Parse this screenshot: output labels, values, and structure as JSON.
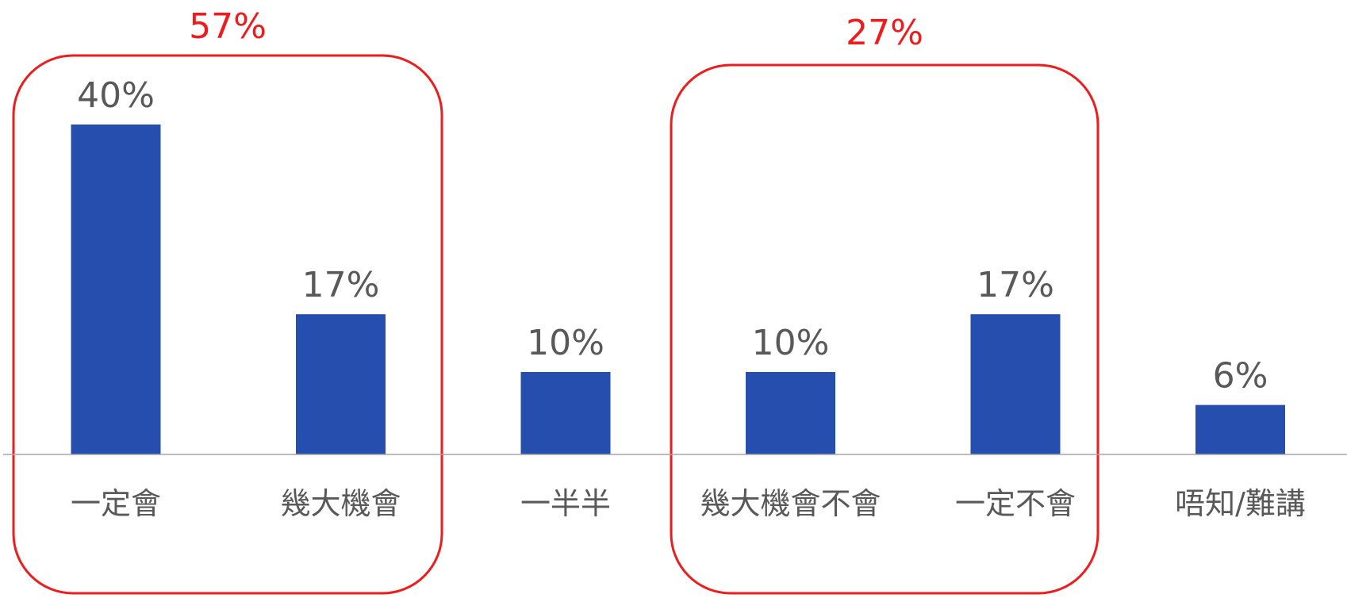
{
  "chart_data": {
    "type": "bar",
    "title": "",
    "xlabel": "",
    "ylabel": "",
    "ylim": [
      0,
      40
    ],
    "grid": false,
    "legend": "none",
    "categories": [
      "一定會",
      "幾大機會",
      "一半半",
      "幾大機會不會",
      "一定不會",
      "唔知/難講"
    ],
    "values": [
      40,
      17,
      10,
      10,
      17,
      6
    ],
    "value_labels": [
      "40%",
      "17%",
      "10%",
      "10%",
      "17%",
      "6%"
    ],
    "groups": [
      {
        "label": "57%",
        "categories": [
          "一定會",
          "幾大機會"
        ]
      },
      {
        "label": "27%",
        "categories": [
          "幾大機會不會",
          "一定不會"
        ]
      }
    ]
  },
  "colors": {
    "bar": "#264EAE",
    "axis": "#a6a6a6",
    "label_text": "#595959",
    "group_box": "#ee1c1c",
    "group_text": "#ee1c1c"
  }
}
